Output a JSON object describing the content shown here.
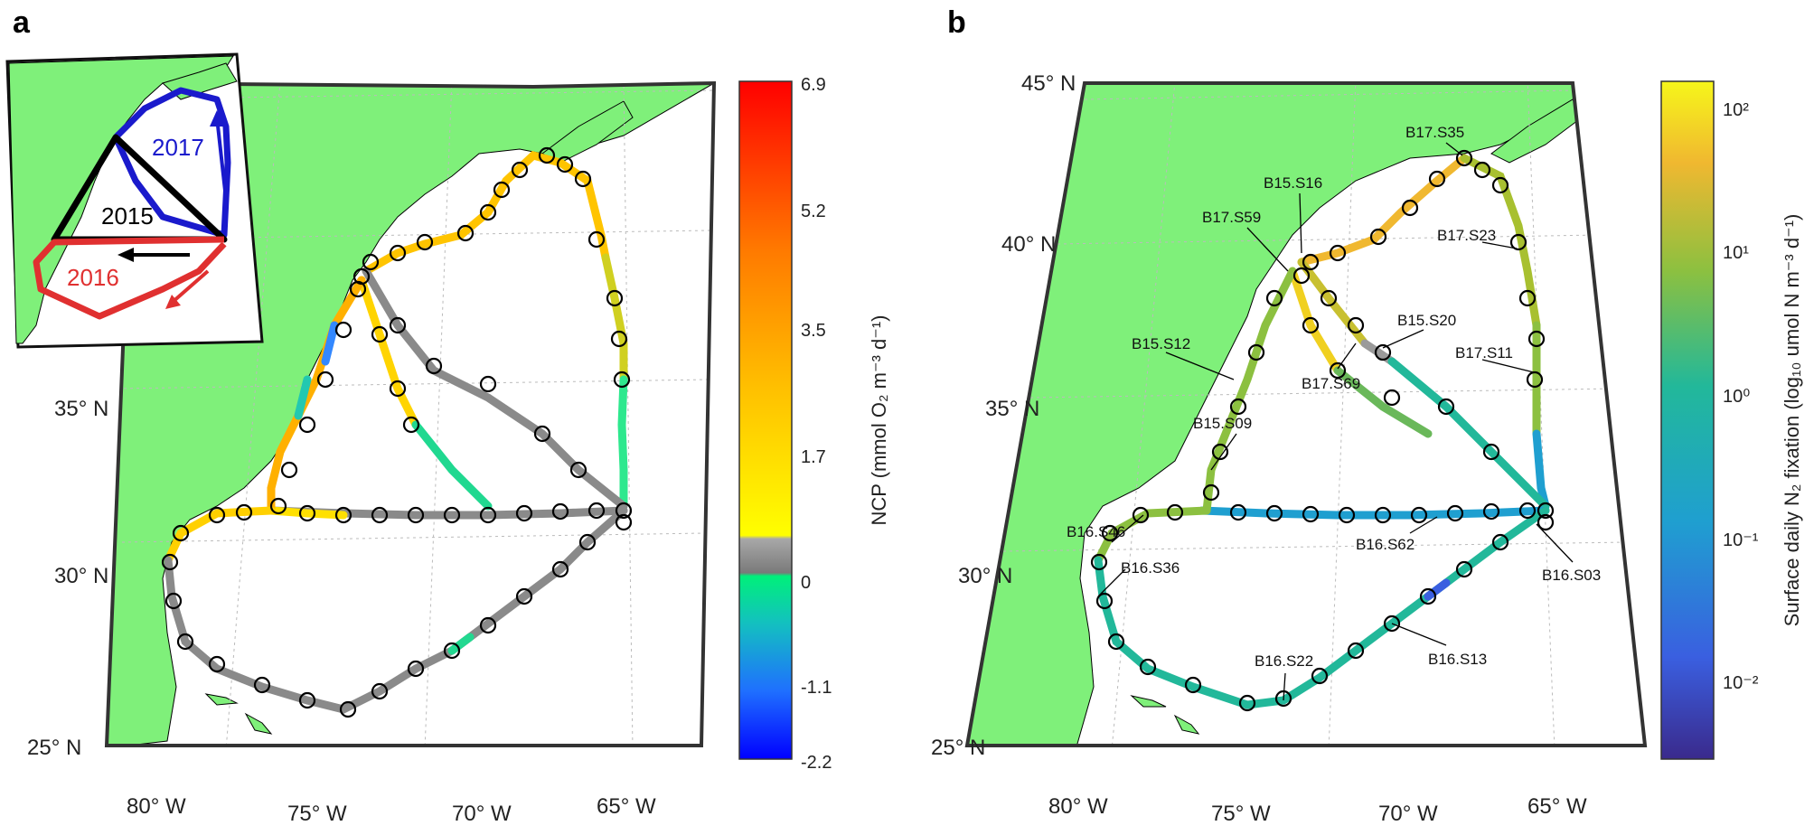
{
  "panels": {
    "a": {
      "letter": "a"
    },
    "b": {
      "letter": "b"
    }
  },
  "coords": {
    "lat": [
      "45° N",
      "40° N",
      "35° N",
      "30° N",
      "25° N"
    ],
    "lon": [
      "80° W",
      "75° W",
      "70° W",
      "65° W"
    ]
  },
  "inset": {
    "labels": [
      "2017",
      "2015",
      "2016"
    ],
    "colors": {
      "2017": "#1a1acc",
      "2015": "#000000",
      "2016": "#e03030"
    }
  },
  "colorbar_a": {
    "title": "NCP (mmol O₂ m⁻³ d⁻¹)",
    "ticks": [
      "6.9",
      "5.2",
      "3.5",
      "1.7",
      "0",
      "-1.1",
      "-2.2"
    ]
  },
  "colorbar_b": {
    "title": "Surface daily N₂ fixation (log₁₀ umol N m⁻³ d⁻¹)",
    "ticks": [
      "10²",
      "10¹",
      "10⁰",
      "10⁻¹",
      "10⁻²"
    ]
  },
  "station_labels": [
    "B17.S35",
    "B15.S16",
    "B17.S59",
    "B17.S23",
    "B15.S20",
    "B15.S12",
    "B17.S11",
    "B17.S69",
    "B15.S09",
    "B16.S46",
    "B16.S62",
    "B16.S36",
    "B16.S03",
    "B16.S22",
    "B16.S13"
  ],
  "colors": {
    "land": "#7ff07a",
    "ocean": "#ffffff",
    "track_neutral": "#8a8a8a"
  }
}
